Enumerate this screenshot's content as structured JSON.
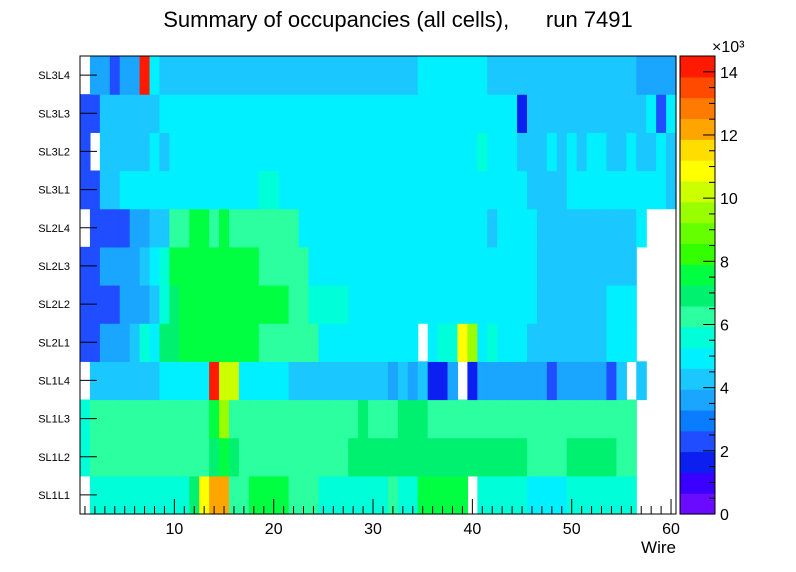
{
  "chart_data": {
    "type": "heatmap",
    "title": "Summary of occupancies (all cells),      run 7491",
    "xlabel": "Wire",
    "ylabel": "",
    "x_range": [
      0.5,
      60.5
    ],
    "x_ticks": [
      10,
      20,
      30,
      40,
      50,
      60
    ],
    "rows": [
      "SL1L1",
      "SL1L2",
      "SL1L3",
      "SL1L4",
      "SL2L1",
      "SL2L2",
      "SL2L3",
      "SL2L4",
      "SL3L1",
      "SL3L2",
      "SL3L3",
      "SL3L4"
    ],
    "z_range": [
      0,
      14500
    ],
    "z_ticks": [
      0,
      2,
      4,
      6,
      8,
      10,
      12,
      14
    ],
    "z_exponent_label": "×10³",
    "palette": [
      "#6a0bff",
      "#3a00ff",
      "#0a1ff0",
      "#1f4dff",
      "#0a7dff",
      "#1aa5ff",
      "#1ac8ff",
      "#00f0ff",
      "#00ffd8",
      "#2bffa0",
      "#00f070",
      "#00ff40",
      "#33ff00",
      "#66ff00",
      "#99ff00",
      "#ccff00",
      "#ffff00",
      "#ffdd00",
      "#ffa500",
      "#ff7a00",
      "#ff4a00",
      "#ff1a00"
    ],
    "z_matrix_note": "values are counts (in units of 10^3), rows ordered bottom to top; null = empty bin",
    "z_matrix": [
      [
        null,
        5.8,
        5.8,
        5.8,
        5.8,
        5.8,
        5.8,
        5.8,
        5.8,
        5.8,
        5.8,
        6.6,
        11.0,
        12.3,
        12.3,
        6.5,
        6.5,
        7.4,
        7.4,
        7.4,
        7.4,
        6.5,
        6.5,
        6.5,
        5.3,
        5.3,
        5.3,
        5.3,
        5.8,
        5.8,
        5.3,
        6.5,
        5.3,
        5.3,
        7.4,
        7.4,
        7.4,
        7.4,
        7.4,
        null,
        5.3,
        5.3,
        5.3,
        5.3,
        5.3,
        4.9,
        4.9,
        4.9,
        4.9,
        5.3,
        5.3,
        5.3,
        5.3,
        5.3,
        5.3,
        5.3,
        null,
        null,
        null,
        null
      ],
      [
        5.3,
        6.1,
        6.1,
        6.1,
        6.1,
        6.1,
        6.1,
        6.1,
        6.1,
        6.1,
        6.1,
        6.1,
        6.1,
        6.9,
        7.4,
        6.9,
        6.1,
        6.1,
        6.1,
        6.1,
        6.1,
        6.1,
        6.1,
        6.1,
        6.1,
        6.1,
        6.1,
        6.9,
        6.9,
        6.9,
        6.9,
        6.9,
        6.9,
        6.9,
        6.9,
        6.9,
        6.9,
        6.9,
        6.9,
        6.9,
        6.9,
        6.9,
        6.9,
        6.9,
        6.9,
        6.1,
        6.1,
        6.1,
        6.1,
        6.9,
        6.9,
        6.9,
        6.9,
        6.9,
        6.1,
        6.1,
        null,
        null,
        null,
        null
      ],
      [
        5.3,
        6.1,
        6.1,
        6.1,
        6.1,
        6.1,
        6.1,
        6.1,
        6.1,
        6.1,
        6.1,
        6.1,
        6.1,
        7.4,
        9.3,
        6.1,
        6.1,
        6.1,
        6.1,
        6.1,
        6.1,
        6.1,
        6.1,
        6.1,
        6.1,
        6.1,
        6.1,
        6.1,
        6.9,
        6.1,
        6.1,
        6.1,
        6.9,
        6.9,
        6.9,
        6.1,
        6.1,
        6.1,
        6.1,
        6.1,
        6.1,
        6.1,
        6.1,
        6.1,
        6.1,
        6.1,
        6.1,
        6.1,
        6.1,
        6.1,
        6.1,
        6.1,
        6.1,
        6.1,
        6.1,
        6.1,
        null,
        null,
        null,
        null
      ],
      [
        null,
        4.5,
        4.5,
        4.5,
        4.5,
        4.5,
        4.5,
        4.5,
        5.0,
        5.0,
        5.0,
        5.0,
        5.0,
        14.0,
        10.2,
        10.2,
        5.0,
        5.0,
        5.0,
        5.0,
        5.0,
        4.5,
        4.5,
        4.5,
        4.5,
        4.5,
        4.5,
        4.5,
        4.5,
        4.5,
        4.5,
        3.8,
        4.5,
        3.8,
        4.5,
        1.5,
        1.5,
        3.8,
        null,
        1.5,
        3.4,
        3.4,
        3.4,
        3.4,
        3.4,
        3.4,
        3.4,
        2.6,
        3.4,
        3.4,
        3.4,
        3.4,
        3.4,
        2.6,
        4.5,
        null,
        4.5,
        null,
        null,
        null
      ],
      [
        2.2,
        2.2,
        3.8,
        3.8,
        3.8,
        4.5,
        5.5,
        5.0,
        6.9,
        6.9,
        7.4,
        7.4,
        7.4,
        7.4,
        7.4,
        7.4,
        7.4,
        7.4,
        6.1,
        6.1,
        6.1,
        6.1,
        6.1,
        6.1,
        5.0,
        5.0,
        5.0,
        5.0,
        5.0,
        5.0,
        5.0,
        5.0,
        5.0,
        5.0,
        null,
        5.0,
        5.3,
        5.3,
        10.7,
        9.3,
        5.0,
        5.3,
        5.0,
        5.0,
        5.0,
        4.5,
        4.5,
        4.5,
        4.5,
        4.5,
        4.5,
        4.5,
        4.5,
        4.9,
        4.9,
        4.9,
        null,
        null,
        null,
        null
      ],
      [
        2.2,
        2.2,
        2.2,
        2.2,
        3.8,
        3.8,
        3.8,
        4.5,
        5.5,
        6.9,
        7.4,
        7.4,
        7.4,
        7.4,
        7.4,
        7.4,
        7.4,
        7.4,
        7.4,
        7.4,
        7.4,
        6.1,
        6.1,
        5.3,
        5.3,
        5.3,
        5.3,
        5.0,
        5.0,
        5.0,
        5.0,
        5.0,
        5.0,
        5.0,
        5.0,
        5.0,
        5.0,
        5.0,
        5.0,
        5.0,
        5.0,
        5.0,
        5.0,
        5.0,
        5.0,
        5.0,
        4.5,
        4.5,
        4.5,
        4.5,
        4.5,
        4.5,
        4.5,
        4.9,
        4.9,
        4.9,
        null,
        null,
        null,
        null
      ],
      [
        2.2,
        2.2,
        3.8,
        3.8,
        3.8,
        3.8,
        4.5,
        5.0,
        5.5,
        7.4,
        7.4,
        7.4,
        7.4,
        7.4,
        7.4,
        7.4,
        7.4,
        7.4,
        6.1,
        6.1,
        6.1,
        6.1,
        6.1,
        5.0,
        5.0,
        5.0,
        5.0,
        5.0,
        5.0,
        5.0,
        5.0,
        5.0,
        5.0,
        5.0,
        5.0,
        5.0,
        5.0,
        5.0,
        5.0,
        5.0,
        5.0,
        5.0,
        5.0,
        5.0,
        5.0,
        5.0,
        4.5,
        4.5,
        4.5,
        4.5,
        4.5,
        4.5,
        4.5,
        4.5,
        4.5,
        4.5,
        null,
        null,
        null,
        null
      ],
      [
        null,
        2.2,
        2.2,
        2.2,
        2.2,
        3.8,
        3.8,
        4.5,
        4.5,
        6.1,
        6.1,
        7.4,
        7.4,
        6.1,
        7.4,
        6.1,
        6.1,
        6.1,
        6.1,
        6.1,
        6.1,
        6.1,
        5.0,
        5.0,
        5.0,
        5.0,
        5.0,
        5.0,
        5.0,
        5.0,
        5.0,
        5.0,
        5.0,
        5.0,
        5.0,
        5.0,
        5.0,
        5.0,
        5.0,
        5.0,
        5.0,
        4.5,
        5.0,
        5.0,
        5.0,
        5.0,
        4.5,
        4.5,
        4.5,
        4.5,
        4.5,
        4.5,
        4.5,
        4.5,
        4.5,
        4.5,
        5.0,
        null,
        null,
        null
      ],
      [
        2.6,
        2.6,
        4.5,
        4.5,
        5.0,
        5.0,
        5.0,
        5.0,
        5.0,
        5.0,
        5.0,
        5.0,
        5.0,
        5.0,
        5.0,
        5.0,
        5.0,
        5.0,
        5.5,
        5.5,
        5.0,
        5.0,
        5.0,
        5.0,
        5.0,
        5.0,
        5.0,
        5.0,
        5.0,
        5.0,
        5.0,
        5.0,
        5.0,
        5.0,
        5.0,
        5.0,
        5.0,
        5.0,
        5.0,
        5.0,
        5.0,
        5.0,
        5.0,
        5.0,
        5.0,
        4.5,
        4.5,
        4.5,
        4.5,
        5.0,
        5.0,
        5.0,
        5.0,
        5.0,
        5.0,
        5.0,
        5.0,
        5.0,
        5.0,
        4.5
      ],
      [
        2.6,
        null,
        4.5,
        4.5,
        4.5,
        4.5,
        4.5,
        5.0,
        4.5,
        5.0,
        5.0,
        5.0,
        5.0,
        5.0,
        5.0,
        5.0,
        5.0,
        5.0,
        5.0,
        5.0,
        5.0,
        5.0,
        5.0,
        5.0,
        5.0,
        5.0,
        5.0,
        5.0,
        5.0,
        5.0,
        5.0,
        5.0,
        5.0,
        5.0,
        5.0,
        5.0,
        5.0,
        5.0,
        5.0,
        5.0,
        5.5,
        5.0,
        5.0,
        5.0,
        4.5,
        4.5,
        4.5,
        5.0,
        4.5,
        5.0,
        4.5,
        5.0,
        5.0,
        4.5,
        4.5,
        5.0,
        4.5,
        4.5,
        5.0,
        4.5
      ],
      [
        2.6,
        2.6,
        4.5,
        4.5,
        4.5,
        4.5,
        4.5,
        4.5,
        5.0,
        5.0,
        5.0,
        5.0,
        5.0,
        5.0,
        5.0,
        5.0,
        5.0,
        5.0,
        5.0,
        5.0,
        5.0,
        5.0,
        5.0,
        5.0,
        5.0,
        5.0,
        5.0,
        5.0,
        5.0,
        5.0,
        5.0,
        5.0,
        5.0,
        5.0,
        5.0,
        5.0,
        5.0,
        5.0,
        5.0,
        5.0,
        5.0,
        5.0,
        5.0,
        5.0,
        1.5,
        4.5,
        4.5,
        4.5,
        4.5,
        4.5,
        4.5,
        4.5,
        4.5,
        4.5,
        4.5,
        4.5,
        4.5,
        5.0,
        2.6,
        5.0
      ],
      [
        null,
        3.8,
        3.8,
        2.6,
        3.8,
        3.8,
        14.0,
        5.0,
        4.5,
        4.5,
        4.5,
        4.5,
        4.5,
        4.5,
        4.5,
        4.5,
        4.5,
        4.5,
        4.5,
        4.5,
        4.5,
        4.5,
        4.5,
        4.5,
        4.5,
        4.5,
        4.5,
        4.5,
        4.5,
        4.5,
        4.5,
        4.5,
        4.5,
        4.5,
        5.0,
        5.0,
        5.0,
        5.0,
        5.0,
        5.0,
        5.0,
        4.5,
        4.5,
        4.5,
        4.5,
        4.5,
        4.5,
        4.5,
        4.5,
        4.5,
        4.5,
        4.5,
        4.5,
        4.5,
        4.5,
        4.5,
        3.8,
        3.8,
        3.8,
        3.8
      ]
    ]
  }
}
